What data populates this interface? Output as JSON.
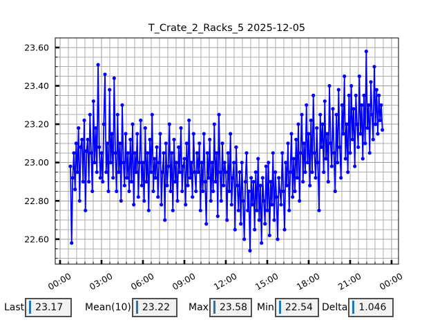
{
  "window_title": "T_Crate_2_Racks_5 2025-12-05",
  "colors": {
    "line": "#0000ff",
    "cursor": "#2277bb",
    "entry_background": "#f2f2f2",
    "entry_border": "#4f4f4f",
    "grid_major": "#9c9c9c",
    "grid_minor": "#acacac",
    "axis_frame": "#000000"
  },
  "stats": [
    {
      "label": "Last",
      "value": "23.17"
    },
    {
      "label": "Mean(10)",
      "value": "23.22"
    },
    {
      "label": "Max",
      "value": "23.58"
    },
    {
      "label": "Min",
      "value": "22.54"
    },
    {
      "label": "Delta",
      "value": "1.046"
    }
  ],
  "chart_data": {
    "type": "line",
    "title": "T_Crate_2_Racks_5 2025-12-05",
    "series_name": "T_Crate_2_Racks_5",
    "marker": "circle",
    "grid": true,
    "legend": "none",
    "x_axis": {
      "labels": [
        "00:00",
        "03:00",
        "06:00",
        "09:00",
        "12:00",
        "15:00",
        "18:00",
        "21:00",
        "00:00"
      ],
      "major_tick_hours": [
        0,
        3,
        6,
        9,
        12,
        15,
        18,
        21,
        24
      ],
      "minor_step_hours": 0.6,
      "range_hours": [
        -0.35,
        24.5
      ]
    },
    "y_axis": {
      "tick_labels": [
        "22.60",
        "22.80",
        "23.00",
        "23.20",
        "23.40",
        "23.60"
      ],
      "major_tick_values": [
        22.6,
        22.8,
        23.0,
        23.2,
        23.4,
        23.6
      ],
      "minor_step": 0.05,
      "range": [
        22.47,
        23.65
      ]
    },
    "x_start_hours": 0.75,
    "x_step_hours": 0.0833333,
    "values": [
      22.98,
      22.58,
      22.92,
      23.05,
      22.86,
      23.1,
      22.95,
      23.18,
      22.8,
      23.08,
      23.12,
      22.9,
      23.22,
      22.75,
      23.06,
      23.12,
      22.9,
      23.25,
      23.05,
      22.85,
      23.32,
      23.0,
      23.18,
      22.95,
      23.51,
      23.08,
      22.92,
      23.05,
      22.9,
      23.2,
      23.46,
      22.95,
      23.1,
      22.85,
      23.38,
      23.0,
      23.15,
      22.92,
      23.44,
      23.05,
      22.85,
      23.25,
      22.95,
      23.1,
      22.8,
      23.3,
      23.0,
      22.88,
      23.15,
      22.92,
      23.05,
      22.85,
      23.12,
      22.9,
      23.2,
      22.78,
      23.05,
      22.95,
      23.15,
      22.82,
      23.0,
      23.22,
      22.88,
      23.0,
      22.8,
      23.18,
      22.9,
      23.05,
      22.75,
      23.12,
      22.95,
      23.25,
      22.85,
      23.02,
      22.92,
      23.08,
      22.82,
      23.0,
      23.15,
      22.78,
      22.95,
      23.05,
      22.7,
      23.1,
      22.88,
      22.98,
      23.2,
      22.85,
      23.05,
      22.75,
      23.12,
      22.9,
      23.0,
      22.8,
      23.08,
      22.95,
      23.18,
      22.85,
      22.98,
      23.02,
      22.78,
      23.1,
      22.88,
      23.22,
      22.92,
      23.0,
      22.82,
      23.15,
      22.95,
      22.85,
      23.05,
      22.95,
      23.1,
      22.75,
      23.0,
      22.85,
      23.15,
      22.9,
      22.68,
      23.05,
      22.92,
      23.12,
      22.8,
      23.0,
      22.85,
      23.2,
      22.9,
      23.05,
      22.72,
      23.25,
      22.95,
      22.8,
      23.1,
      22.88,
      23.0,
      22.95,
      22.7,
      23.05,
      22.85,
      23.15,
      22.78,
      22.92,
      23.0,
      22.65,
      23.08,
      22.88,
      22.75,
      22.95,
      22.68,
      23.0,
      22.8,
      22.6,
      22.9,
      23.05,
      22.75,
      22.85,
      22.54,
      22.92,
      22.78,
      22.9,
      22.65,
      22.95,
      22.75,
      23.02,
      22.7,
      22.88,
      22.58,
      22.92,
      22.8,
      22.68,
      22.98,
      22.75,
      23.0,
      22.62,
      22.9,
      22.78,
      23.05,
      22.7,
      22.95,
      22.82,
      22.6,
      22.92,
      22.85,
      22.78,
      23.05,
      22.85,
      22.65,
      23.0,
      22.88,
      23.1,
      22.75,
      22.95,
      23.15,
      22.82,
      23.02,
      22.85,
      23.12,
      22.92,
      23.2,
      22.8,
      23.05,
      23.25,
      22.9,
      23.1,
      22.95,
      23.3,
      23.0,
      23.15,
      22.88,
      23.22,
      22.95,
      23.35,
      23.05,
      22.92,
      23.18,
      23.0,
      22.75,
      23.25,
      23.08,
      23.2,
      22.95,
      23.32,
      23.02,
      23.15,
      22.9,
      23.4,
      23.1,
      22.98,
      23.28,
      23.05,
      22.85,
      23.25,
      23.0,
      23.38,
      23.08,
      22.92,
      23.3,
      23.15,
      23.45,
      23.02,
      23.2,
      22.95,
      23.35,
      23.05,
      23.4,
      23.12,
      23.28,
      22.98,
      23.35,
      23.2,
      23.08,
      23.45,
      23.15,
      23.3,
      23.02,
      23.35,
      23.1,
      23.58,
      23.18,
      23.3,
      23.05,
      23.42,
      23.25,
      23.12,
      23.5,
      23.2,
      23.38,
      23.15,
      23.35,
      23.22,
      23.3,
      23.17
    ]
  }
}
